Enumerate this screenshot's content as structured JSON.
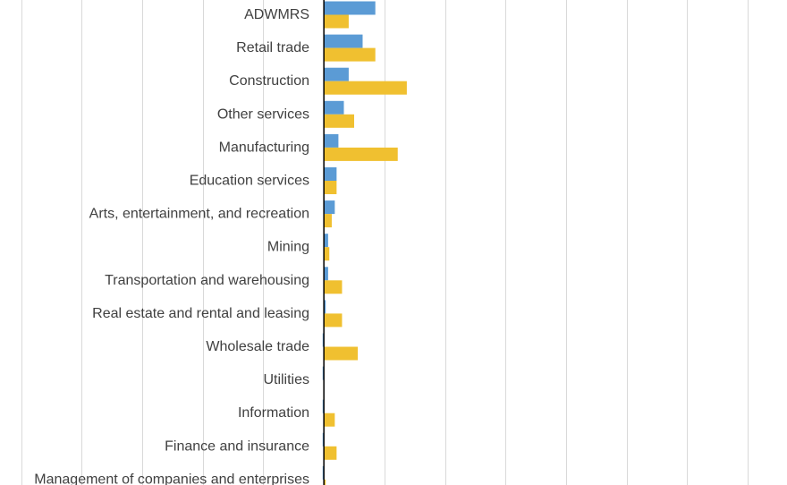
{
  "chart_data": {
    "type": "bar",
    "orientation": "horizontal",
    "categories": [
      "ADWMRS",
      "Retail trade",
      "Construction",
      "Other services",
      "Manufacturing",
      "Education services",
      "Arts, entertainment, and recreation",
      "Mining",
      "Transportation and warehousing",
      "Real estate and rental and leasing",
      "Wholesale trade",
      "Utilities",
      "Information",
      "Finance and insurance",
      "Management of companies and enterprises"
    ],
    "series": [
      {
        "color": "#5b9bd5",
        "values": [
          8.5,
          6.4,
          4.1,
          3.3,
          2.4,
          2.1,
          1.8,
          0.7,
          0.7,
          0.3,
          -0.2,
          -0.2,
          -0.2,
          -0.2,
          -0.2
        ]
      },
      {
        "color": "#f0c030",
        "values": [
          4.1,
          8.5,
          13.7,
          5.0,
          12.2,
          2.1,
          1.3,
          0.9,
          3.0,
          3.0,
          5.6,
          0.0,
          1.8,
          2.1,
          0.3
        ]
      }
    ],
    "xlim": [
      -53.5,
      76.5
    ],
    "gridlines": [
      -50,
      -40,
      -30,
      -20,
      -10,
      0,
      10,
      20,
      30,
      40,
      50,
      60,
      70
    ],
    "grid": true,
    "legend": "none"
  }
}
